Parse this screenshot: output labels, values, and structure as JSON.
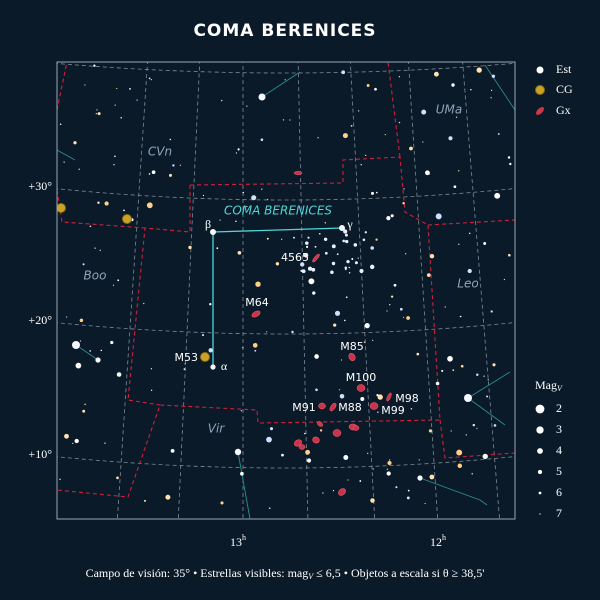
{
  "title": "COMA BERENICES",
  "legend": {
    "items": [
      "Est",
      "CG",
      "Gx"
    ],
    "mag_title": "Mag",
    "mag_sub": "V",
    "magnitudes": [
      2,
      3,
      4,
      5,
      6,
      7
    ]
  },
  "constellations": [
    "CVn",
    "UMa",
    "Boo",
    "Leo",
    "Vir"
  ],
  "main_label": "COMA BERENICES",
  "stars": [
    "β",
    "γ",
    "α"
  ],
  "objects": [
    "4565",
    "M64",
    "M53",
    "M85",
    "M100",
    "M91",
    "M88",
    "M98",
    "M99"
  ],
  "dec_labels": [
    "+30°",
    "+20°",
    "+10°"
  ],
  "ra_labels": [
    {
      "hour": "13",
      "unit": "h"
    },
    {
      "hour": "12",
      "unit": "h"
    }
  ],
  "footer": {
    "field": "Campo de visión: 35°",
    "separator": "•",
    "visible": "Estrellas visibles: mag",
    "visible_sub": "V",
    "visible_limit": " ≤ 6,5",
    "scale": "Objetos a escala si θ ≥ 38,5'"
  }
}
